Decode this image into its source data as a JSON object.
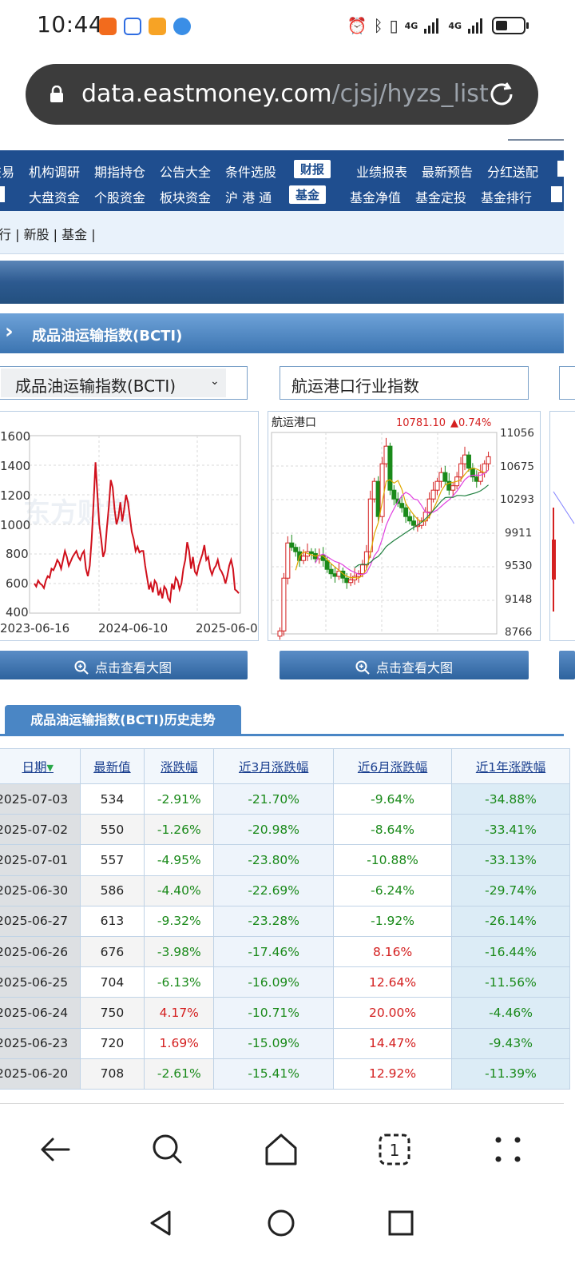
{
  "status_bar": {
    "time": "10:44",
    "net1": "4G",
    "net2": "4G"
  },
  "url": {
    "host": "data.eastmoney.com",
    "path": "/cjsj/hyzs_list"
  },
  "nav": {
    "row1": [
      "交易",
      "机构调研",
      "期指持仓",
      "公告大全",
      "条件选股",
      "财报",
      "业绩报表",
      "最新预告",
      "分红送配"
    ],
    "row2": [
      "大盘资金",
      "个股资金",
      "板块资金",
      "沪 港 通",
      "基金",
      "基金净值",
      "基金定投",
      "基金排行"
    ]
  },
  "subnav": {
    "text": "行 | 新股 | 基金 |"
  },
  "section": {
    "title": "成品油运输指数(BCTI)"
  },
  "selects": {
    "left": "成品油运输指数(BCTI)",
    "right": "航运港口行业指数"
  },
  "chart_left": {
    "yticks": [
      "1600",
      "1400",
      "1200",
      "1000",
      "800",
      "600",
      "400"
    ],
    "xticks": [
      "2023-06-16",
      "2024-06-10",
      "2025-06-0"
    ]
  },
  "chart_right": {
    "title": "航运港口",
    "last": "10781.10",
    "change": "▲0.74%",
    "yticks": [
      "11056",
      "10675",
      "10293",
      "9911",
      "9530",
      "9148",
      "8766"
    ]
  },
  "chart_data": [
    {
      "type": "line",
      "title": "",
      "ylim": [
        400,
        1600
      ],
      "x_range": [
        "2023-06-16",
        "2025-07-03"
      ],
      "xticks": [
        "2023-06-16",
        "2024-06-10",
        "2025-06-0"
      ],
      "grid": true,
      "series": [
        {
          "values": [
            600,
            580,
            620,
            600,
            590,
            570,
            620,
            650,
            640,
            700,
            690,
            720,
            760,
            740,
            700,
            760,
            820,
            780,
            720,
            750,
            780,
            800,
            820,
            780,
            760,
            800,
            820,
            700,
            650,
            720,
            900,
            1150,
            1420,
            1200,
            1000,
            900,
            780,
            820,
            980,
            1120,
            1300,
            1250,
            1100,
            1000,
            1050,
            1150,
            1020,
            1100,
            1200,
            1150,
            1050,
            950,
            900,
            820,
            850,
            810,
            820,
            820,
            720,
            640,
            560,
            600,
            540,
            620,
            600,
            520,
            560,
            500,
            580,
            560,
            500,
            480,
            600,
            560,
            640,
            620,
            560,
            600,
            700,
            760,
            880,
            820,
            700,
            780,
            680,
            660,
            720,
            760,
            800,
            860,
            760,
            780,
            700,
            660,
            700,
            720,
            760,
            700,
            680,
            650,
            600,
            650,
            720,
            760,
            700,
            560,
            550,
            534
          ]
        }
      ]
    },
    {
      "type": "candlestick",
      "title": "航运港口",
      "ylim": [
        8766,
        11056
      ],
      "last": 10781.1,
      "change_pct": 0.74,
      "series": [
        {
          "name": "close",
          "values": [
            8800,
            9400,
            9800,
            9750,
            9700,
            9600,
            9650,
            9700,
            9680,
            9620,
            9660,
            9600,
            9500,
            9450,
            9420,
            9480,
            9400,
            9350,
            9380,
            9420,
            9450,
            9550,
            9700,
            10300,
            10500,
            10100,
            10700,
            10900,
            10400,
            10300,
            10250,
            10200,
            10100,
            10050,
            10000,
            10000,
            10050,
            10150,
            10300,
            10400,
            10500,
            10600,
            10500,
            10400,
            10450,
            10550,
            10700,
            10800,
            10650,
            10550,
            10500,
            10600,
            10700,
            10780
          ]
        }
      ]
    }
  ],
  "buttons": {
    "enlarge": "点击查看大图"
  },
  "history_tab": "成品油运输指数(BCTI)历史走势",
  "table": {
    "headers": [
      "日期",
      "最新值",
      "涨跌幅",
      "近3月涨跌幅",
      "近6月涨跌幅",
      "近1年涨跌幅"
    ],
    "rows": [
      [
        "2025-07-03",
        "534",
        "-2.91%",
        "-21.70%",
        "-9.64%",
        "-34.88%"
      ],
      [
        "2025-07-02",
        "550",
        "-1.26%",
        "-20.98%",
        "-8.64%",
        "-33.41%"
      ],
      [
        "2025-07-01",
        "557",
        "-4.95%",
        "-23.80%",
        "-10.88%",
        "-33.13%"
      ],
      [
        "2025-06-30",
        "586",
        "-4.40%",
        "-22.69%",
        "-6.24%",
        "-29.74%"
      ],
      [
        "2025-06-27",
        "613",
        "-9.32%",
        "-23.28%",
        "-1.92%",
        "-26.14%"
      ],
      [
        "2025-06-26",
        "676",
        "-3.98%",
        "-17.46%",
        "8.16%",
        "-16.44%"
      ],
      [
        "2025-06-25",
        "704",
        "-6.13%",
        "-16.09%",
        "12.64%",
        "-11.56%"
      ],
      [
        "2025-06-24",
        "750",
        "4.17%",
        "-10.71%",
        "20.00%",
        "-4.46%"
      ],
      [
        "2025-06-23",
        "720",
        "1.69%",
        "-15.09%",
        "14.47%",
        "-9.43%"
      ],
      [
        "2025-06-20",
        "708",
        "-2.61%",
        "-15.41%",
        "12.92%",
        "-11.39%"
      ]
    ]
  },
  "colors": {
    "nav_blue": "#1f4e8f",
    "up_red": "#d42020",
    "down_green": "#1a8a1a",
    "line_red": "#d0101c"
  },
  "bottom_nav": {
    "tabs_count": "1"
  }
}
